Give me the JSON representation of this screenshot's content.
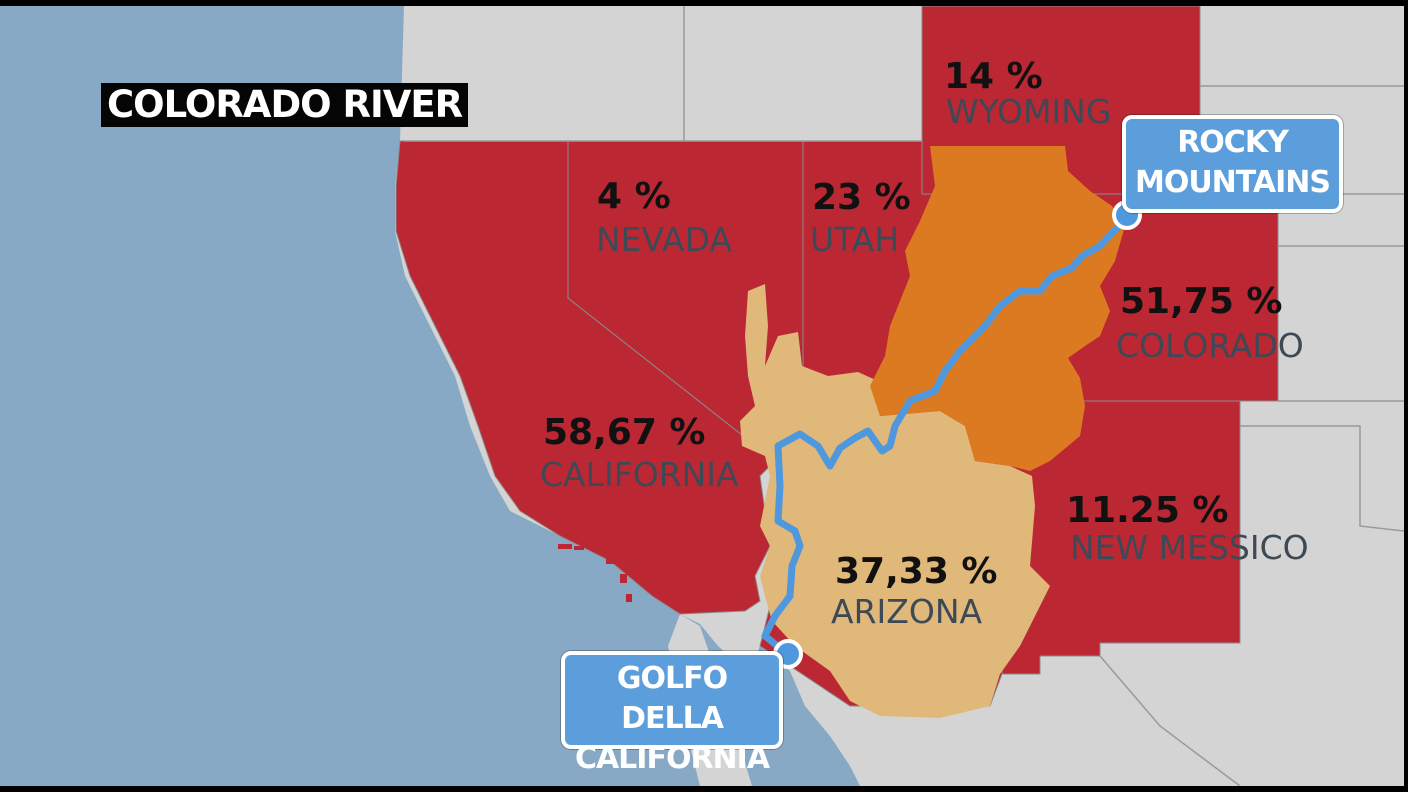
{
  "map": {
    "title": "COLORADO RIVER",
    "colors": {
      "ocean": "#87a9c6",
      "land": "#d4d4d4",
      "basin_state": "#bb2834",
      "upper_basin": "#dc7a22",
      "lower_basin": "#e0b87a",
      "river": "#4f98de",
      "border": "#8a8a8a"
    },
    "states": [
      {
        "name": "WYOMING",
        "percent": "14 %"
      },
      {
        "name": "NEVADA",
        "percent": "4 %"
      },
      {
        "name": "UTAH",
        "percent": "23 %"
      },
      {
        "name": "COLORADO",
        "percent": "51,75 %"
      },
      {
        "name": "CALIFORNIA",
        "percent": "58,67 %"
      },
      {
        "name": "NEW MESSICO",
        "percent": "11.25 %"
      },
      {
        "name": "ARIZONA",
        "percent": "37,33 %"
      }
    ],
    "callouts": {
      "rocky": {
        "line1": "ROCKY",
        "line2": "MOUNTAINS"
      },
      "golfo": {
        "line1": "GOLFO DELLA",
        "line2": "CALIFORNIA"
      }
    }
  }
}
